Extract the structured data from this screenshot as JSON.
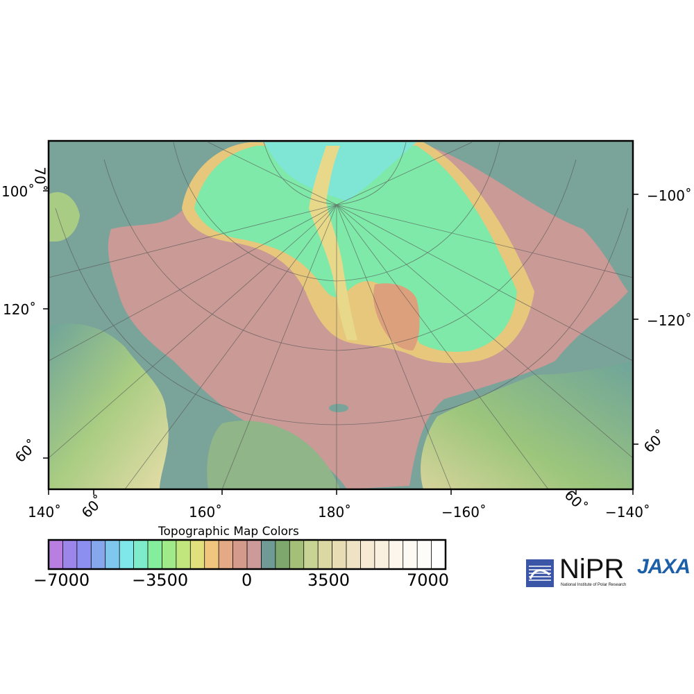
{
  "map": {
    "projection": "polar-stereographic-north",
    "center_longitude": 180,
    "land_color": "#7aa39a",
    "shelf_color": "#c99a96",
    "basin_color": "#7ee9a8",
    "ridge_color": "#e8d98a"
  },
  "frame_labels": {
    "left": [
      "100˚",
      "120˚",
      "60˚"
    ],
    "left_lat": "70˚",
    "right": [
      "−100˚",
      "−120˚",
      "60˚"
    ],
    "bottom": [
      "140˚",
      "60˚",
      "160˚",
      "180˚",
      "−160˚",
      "60˚",
      "−140˚"
    ]
  },
  "colorbar": {
    "title": "Topographic Map Colors",
    "tick_labels": [
      "−7000",
      "−3500",
      "0",
      "3500",
      "7000"
    ],
    "min": -7000,
    "max": 7000,
    "colors": [
      "#b97fe0",
      "#9d86ea",
      "#8d8ff0",
      "#86a7ec",
      "#7fc7ec",
      "#7fe7ea",
      "#7eecc8",
      "#84ee9c",
      "#a0ea8a",
      "#c2e67e",
      "#e2e07e",
      "#f0c67e",
      "#e4aa86",
      "#d49a8c",
      "#cc9a98",
      "#6f9a95",
      "#7ea76e",
      "#a4c078",
      "#c8d494",
      "#dcd8a4",
      "#e8dcb4",
      "#f0e2c4",
      "#f6ead4",
      "#faf0e0",
      "#fcf6ec",
      "#fdfaf4",
      "#fefcf8",
      "#ffffff"
    ]
  },
  "logos": {
    "nipr": "NiPR",
    "nipr_sub": "National Institute of Polar Research",
    "jaxa": "JAXA"
  }
}
